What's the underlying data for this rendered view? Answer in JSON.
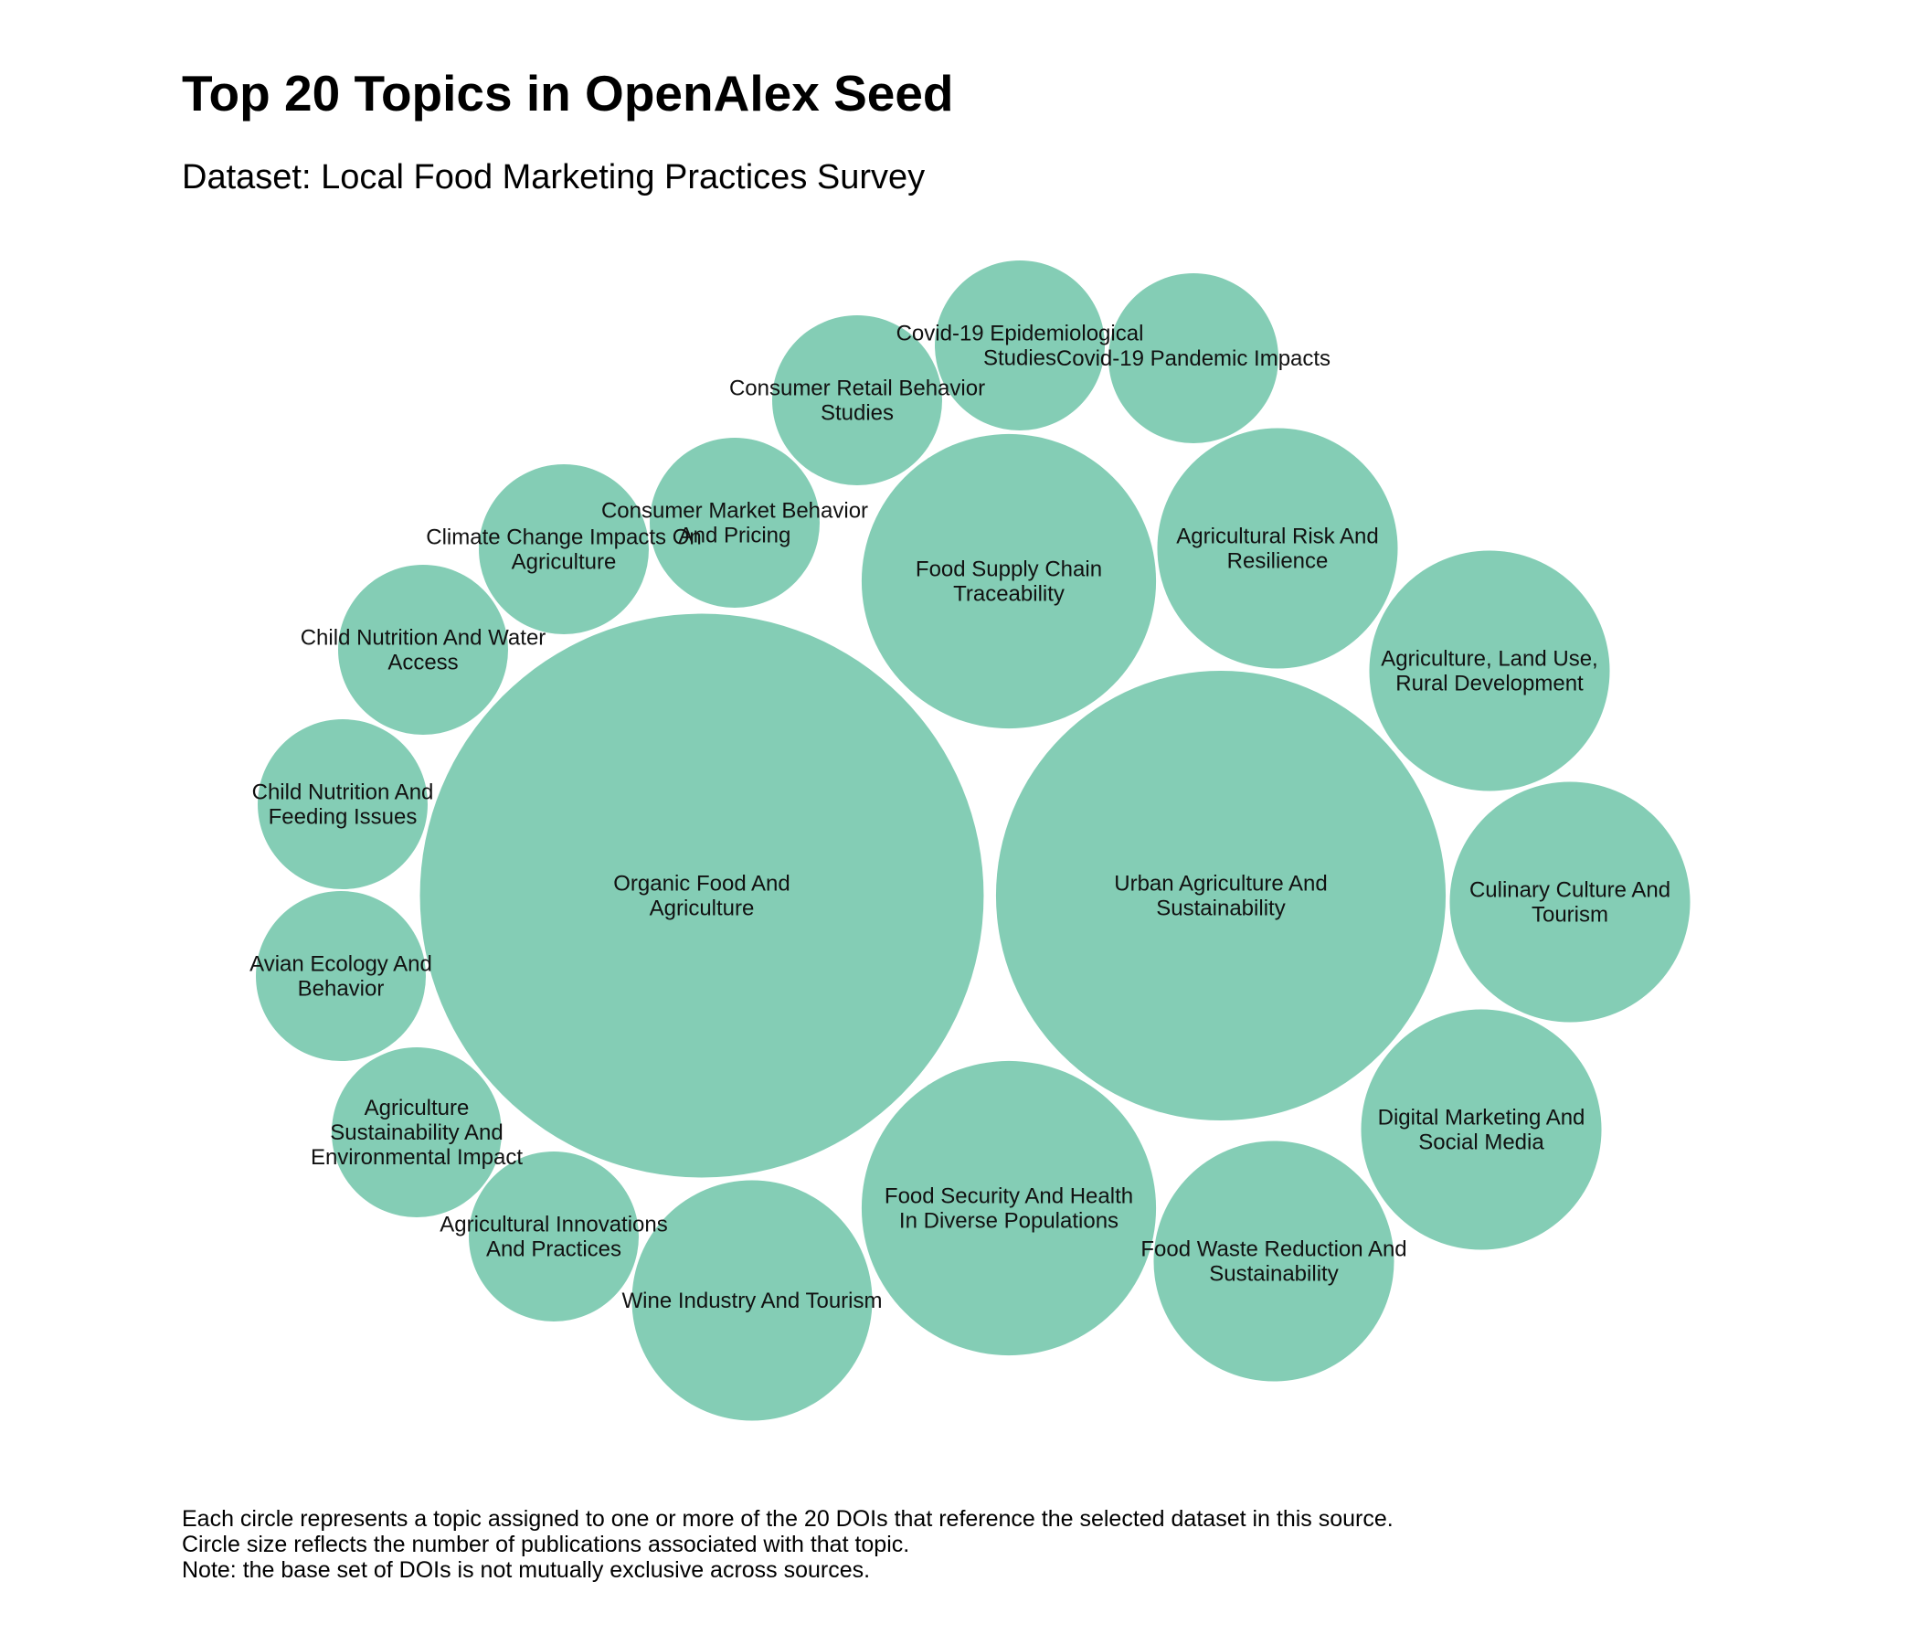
{
  "title": "Top 20 Topics in OpenAlex Seed",
  "subtitle": "Dataset: Local Food Marketing Practices Survey",
  "colors": {
    "bubble": "#84cdb5",
    "label": "#111111"
  },
  "chart_data": {
    "type": "bubble",
    "topics": [
      {
        "label": "Organic Food And Agriculture",
        "count": 11
      },
      {
        "label": "Urban Agriculture And Sustainability",
        "count": 7
      },
      {
        "label": "Food Supply Chain Traceability",
        "count": 3
      },
      {
        "label": "Food Security And Health In Diverse Populations",
        "count": 3
      },
      {
        "label": "Agricultural Risk And Resilience",
        "count": 2
      },
      {
        "label": "Agriculture, Land Use, Rural Development",
        "count": 2
      },
      {
        "label": "Culinary Culture And Tourism",
        "count": 2
      },
      {
        "label": "Digital Marketing And Social Media",
        "count": 2
      },
      {
        "label": "Food Waste Reduction And Sustainability",
        "count": 2
      },
      {
        "label": "Wine Industry And Tourism",
        "count": 2
      },
      {
        "label": "Agricultural Innovations And Practices",
        "count": 1
      },
      {
        "label": "Agriculture Sustainability And Environmental Impact",
        "count": 1
      },
      {
        "label": "Avian Ecology And Behavior",
        "count": 1
      },
      {
        "label": "Child Nutrition And Feeding Issues",
        "count": 1
      },
      {
        "label": "Child Nutrition And Water Access",
        "count": 1
      },
      {
        "label": "Climate Change Impacts On Agriculture",
        "count": 1
      },
      {
        "label": "Consumer Market Behavior And Pricing",
        "count": 1
      },
      {
        "label": "Consumer Retail Behavior Studies",
        "count": 1
      },
      {
        "label": "Covid-19 Epidemiological Studies",
        "count": 1
      },
      {
        "label": "Covid-19 Pandemic Impacts",
        "count": 1
      }
    ]
  },
  "caption": [
    "Each circle represents a topic assigned to one or more of the 20 DOIs that reference the selected dataset in this source.",
    "Circle size reflects the number of publications associated with that topic.",
    "Note: the base set of DOIs is not mutually exclusive across sources."
  ]
}
